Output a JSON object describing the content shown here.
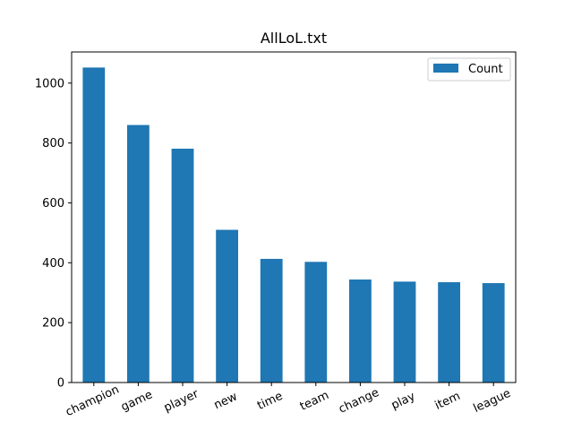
{
  "chart_data": {
    "type": "bar",
    "title": "AllLoL.txt",
    "xlabel": "",
    "ylabel": "",
    "categories": [
      "champion",
      "game",
      "player",
      "new",
      "time",
      "team",
      "change",
      "play",
      "item",
      "league"
    ],
    "series": [
      {
        "name": "Count",
        "values": [
          1052,
          860,
          781,
          510,
          413,
          403,
          344,
          337,
          335,
          332
        ],
        "color": "#1f77b4"
      }
    ],
    "ylim": [
      0,
      1104
    ],
    "yticks": [
      0,
      200,
      400,
      600,
      800,
      1000
    ],
    "legend_position": "top-right",
    "grid": false,
    "x_tick_rotation": "slanted"
  }
}
